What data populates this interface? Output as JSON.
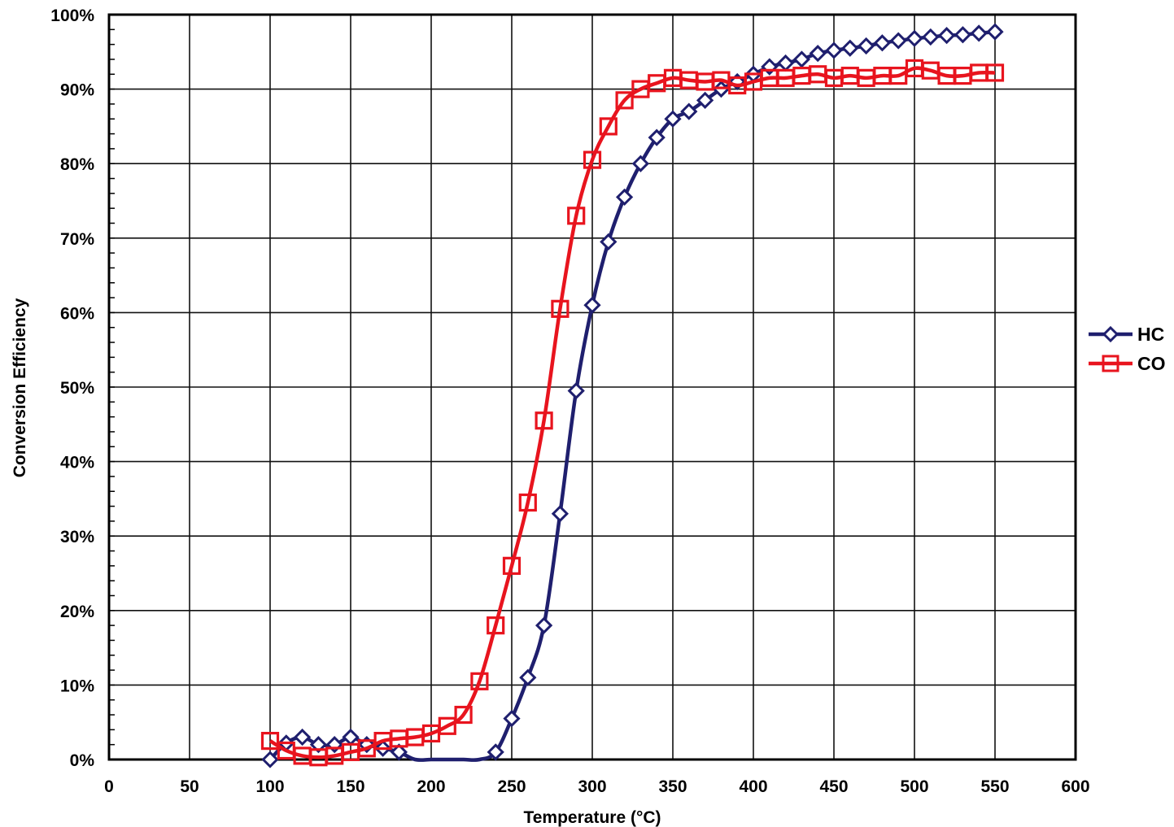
{
  "chart_data": {
    "type": "line",
    "title": "",
    "xlabel": "Temperature (°C)",
    "ylabel": "Conversion Efficiency",
    "xlim": [
      0,
      600
    ],
    "ylim": [
      0,
      100
    ],
    "x_ticks": [
      0,
      50,
      100,
      150,
      200,
      250,
      300,
      350,
      400,
      450,
      500,
      550,
      600
    ],
    "x_tick_labels": [
      "0",
      "50",
      "100",
      "150",
      "200",
      "250",
      "300",
      "350",
      "400",
      "450",
      "500",
      "550",
      "600"
    ],
    "y_ticks": [
      0,
      10,
      20,
      30,
      40,
      50,
      60,
      70,
      80,
      90,
      100
    ],
    "y_tick_labels": [
      "0%",
      "10%",
      "20%",
      "30%",
      "40%",
      "50%",
      "60%",
      "70%",
      "80%",
      "90%",
      "100%"
    ],
    "grid": true,
    "legend_position": "right",
    "series": [
      {
        "name": "HC",
        "color": "#1f1f6e",
        "marker": "diamond",
        "x": [
          100,
          110,
          120,
          130,
          140,
          150,
          160,
          170,
          180,
          190,
          200,
          210,
          220,
          230,
          240,
          250,
          260,
          270,
          280,
          290,
          300,
          310,
          320,
          330,
          340,
          350,
          360,
          370,
          380,
          390,
          400,
          410,
          420,
          430,
          440,
          450,
          460,
          470,
          480,
          490,
          500,
          510,
          520,
          530,
          540,
          550
        ],
        "y": [
          0,
          2.2,
          3,
          2,
          2,
          3,
          2,
          1.5,
          1,
          0,
          0,
          0,
          0,
          0,
          1,
          5.5,
          11,
          18,
          33,
          49.5,
          61,
          69.5,
          75.5,
          80,
          83.5,
          86,
          87,
          88.5,
          90,
          91,
          92,
          93,
          93.5,
          94,
          94.8,
          95.2,
          95.5,
          95.8,
          96.2,
          96.5,
          96.8,
          97,
          97.2,
          97.3,
          97.5,
          97.7
        ],
        "marker_count": 40
      },
      {
        "name": "CO",
        "color": "#e8141e",
        "marker": "square",
        "x": [
          100,
          110,
          120,
          130,
          140,
          150,
          160,
          170,
          180,
          190,
          200,
          210,
          220,
          230,
          240,
          250,
          260,
          270,
          280,
          290,
          300,
          310,
          320,
          330,
          340,
          350,
          360,
          370,
          380,
          390,
          400,
          410,
          420,
          430,
          440,
          450,
          460,
          470,
          480,
          490,
          500,
          510,
          520,
          530,
          540,
          550
        ],
        "y": [
          2.5,
          1.2,
          0.5,
          0.3,
          0.5,
          1,
          1.5,
          2.5,
          2.8,
          3,
          3.5,
          4.5,
          6,
          10.5,
          18,
          26,
          34.5,
          45.5,
          60.5,
          73,
          80.5,
          85,
          88.5,
          90,
          90.8,
          91.5,
          91.2,
          91,
          91.2,
          90.5,
          91,
          91.5,
          91.5,
          91.8,
          92,
          91.5,
          91.8,
          91.5,
          91.8,
          91.8,
          92.8,
          92.5,
          91.8,
          91.8,
          92.2,
          92.2
        ]
      }
    ]
  }
}
